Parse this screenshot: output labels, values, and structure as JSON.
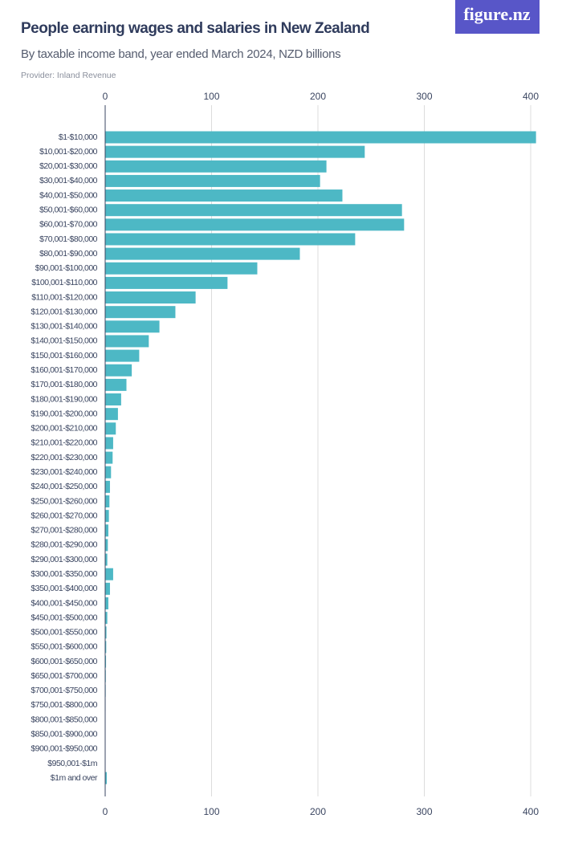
{
  "logo": "figure.nz",
  "chart_data": {
    "type": "bar",
    "orientation": "horizontal",
    "title": "People earning wages and salaries in New Zealand",
    "subtitle": "By taxable income band, year ended March 2024, NZD billions",
    "source": "Provider: Inland Revenue",
    "categories": [
      "$1-$10,000",
      "$10,001-$20,000",
      "$20,001-$30,000",
      "$30,001-$40,000",
      "$40,001-$50,000",
      "$50,001-$60,000",
      "$60,001-$70,000",
      "$70,001-$80,000",
      "$80,001-$90,000",
      "$90,001-$100,000",
      "$100,001-$110,000",
      "$110,001-$120,000",
      "$120,001-$130,000",
      "$130,001-$140,000",
      "$140,001-$150,000",
      "$150,001-$160,000",
      "$160,001-$170,000",
      "$170,001-$180,000",
      "$180,001-$190,000",
      "$190,001-$200,000",
      "$200,001-$210,000",
      "$210,001-$220,000",
      "$220,001-$230,000",
      "$230,001-$240,000",
      "$240,001-$250,000",
      "$250,001-$260,000",
      "$260,001-$270,000",
      "$270,001-$280,000",
      "$280,001-$290,000",
      "$290,001-$300,000",
      "$300,001-$350,000",
      "$350,001-$400,000",
      "$400,001-$450,000",
      "$450,001-$500,000",
      "$500,001-$550,000",
      "$550,001-$600,000",
      "$600,001-$650,000",
      "$650,001-$700,000",
      "$700,001-$750,000",
      "$750,001-$800,000",
      "$800,001-$850,000",
      "$850,001-$900,000",
      "$900,001-$950,000",
      "$950,001-$1m",
      "$1m and over"
    ],
    "values": [
      405,
      244,
      208,
      202,
      223,
      279,
      281,
      235,
      183,
      143,
      115,
      85,
      66,
      51,
      41,
      32,
      25,
      20,
      15,
      12,
      10,
      7.5,
      7,
      5.5,
      4.5,
      4,
      3.5,
      3,
      2.5,
      2,
      7.5,
      4.5,
      3,
      2,
      1.2,
      1,
      0.8,
      0.6,
      0.5,
      0.4,
      0.3,
      0.3,
      0.2,
      0.2,
      1.5
    ],
    "color": "#4db8c5",
    "xlim": [
      0,
      400
    ],
    "xticks": [
      0,
      100,
      200,
      300,
      400
    ],
    "grid": true
  }
}
